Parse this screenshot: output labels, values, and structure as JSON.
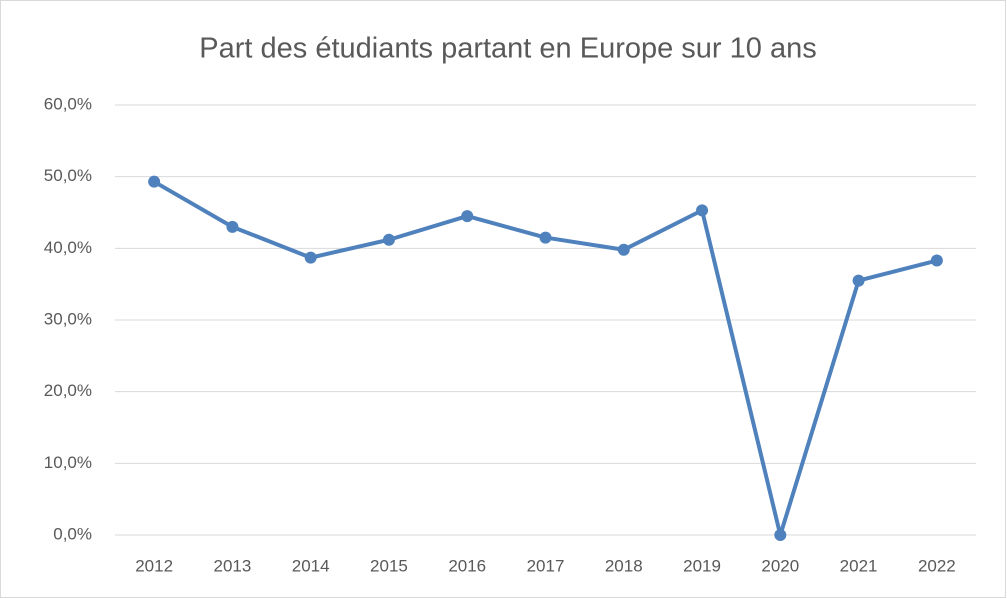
{
  "chart_data": {
    "type": "line",
    "title": "Part des étudiants partant en Europe sur 10 ans",
    "categories": [
      "2012",
      "2013",
      "2014",
      "2015",
      "2016",
      "2017",
      "2018",
      "2019",
      "2020",
      "2021",
      "2022"
    ],
    "values": [
      49.3,
      43.0,
      38.7,
      41.2,
      44.5,
      41.5,
      39.8,
      45.3,
      0,
      35.5,
      38.3
    ],
    "color": "#4f81bd",
    "ylim": [
      0,
      60
    ],
    "yticks": [
      {
        "value": 0,
        "label": "0,0%"
      },
      {
        "value": 10,
        "label": "10,0%"
      },
      {
        "value": 20,
        "label": "20,0%"
      },
      {
        "value": 30,
        "label": "30,0%"
      },
      {
        "value": 40,
        "label": "40,0%"
      },
      {
        "value": 50,
        "label": "50,0%"
      },
      {
        "value": 60,
        "label": "60,0%"
      }
    ],
    "grid": true
  }
}
